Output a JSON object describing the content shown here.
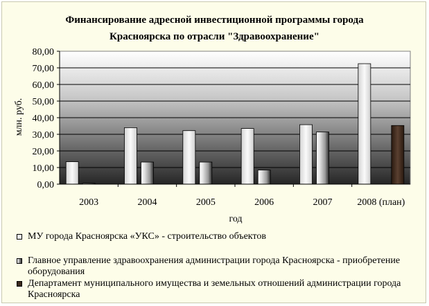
{
  "chart_data": {
    "type": "bar",
    "title_lines": [
      "Финансирование адресной инвестиционной программы города",
      "Красноярска по отрасли \"Здравоохранение\""
    ],
    "xlabel": "год",
    "ylabel": "млн. руб.",
    "categories": [
      "2003",
      "2004",
      "2005",
      "2006",
      "2007",
      "2008 (план)"
    ],
    "ylim": [
      0,
      80
    ],
    "y_ticks": [
      "0,00",
      "10,00",
      "20,00",
      "30,00",
      "40,00",
      "50,00",
      "60,00",
      "70,00",
      "80,00"
    ],
    "grid": true,
    "legend_position": "bottom",
    "series": [
      {
        "name": "МУ города Красноярска «УКС» - строительство объектов",
        "values": [
          13.5,
          34.0,
          32.2,
          33.5,
          35.8,
          72.5
        ],
        "color": "#f0f0f0"
      },
      {
        "name": "Главное управление здравоохранения администрации города Красноярска - приобретение оборудования",
        "values": [
          0.5,
          13.3,
          13.3,
          8.5,
          31.4,
          null
        ],
        "color": "#d8d8d8"
      },
      {
        "name": "Департамент муниципального имущества и земельных отношений администрации города Красноярска",
        "values": [
          null,
          null,
          null,
          null,
          null,
          35.3
        ],
        "color": "#4a3628"
      }
    ]
  }
}
